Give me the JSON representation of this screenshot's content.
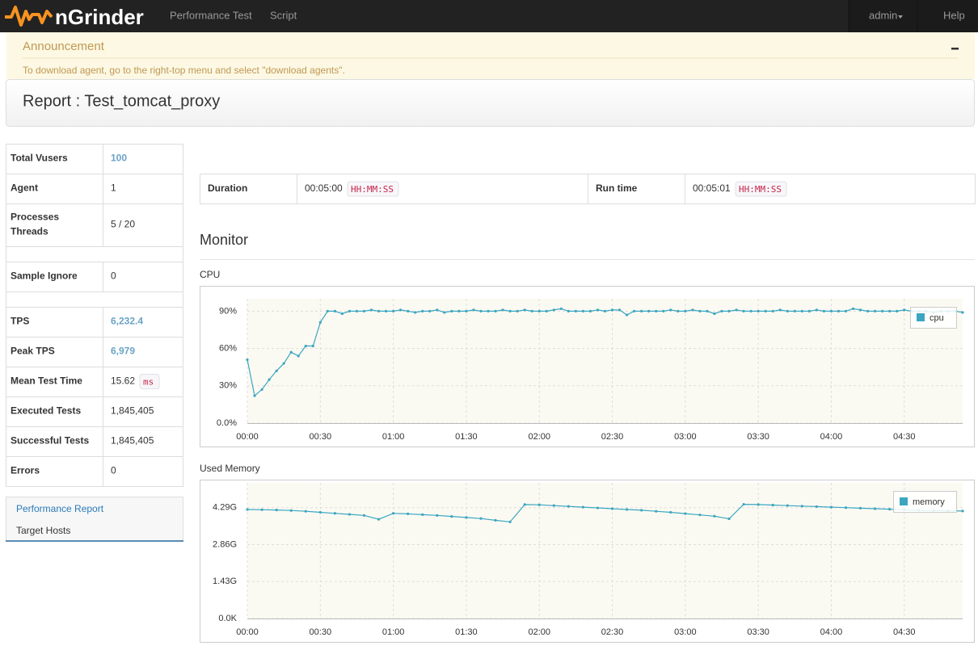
{
  "navbar": {
    "brand": "nGrinder",
    "menu": [
      "Performance Test",
      "Script"
    ],
    "user": "admin",
    "help": "Help"
  },
  "announcement": {
    "title": "Announcement",
    "text": "To download agent, go to the right-top menu and select \"download agents\"."
  },
  "report_title": "Report : Test_tomcat_proxy",
  "summary": {
    "rows": [
      {
        "label": "Total Vusers",
        "value": "100"
      },
      {
        "label": "Agent",
        "value": "1"
      },
      {
        "label": "Processes",
        "sublabel": "Threads",
        "value": "5 / 20"
      },
      {
        "label": "Sample Ignore",
        "value": "0"
      },
      {
        "label": "TPS",
        "value": "6,232.4"
      },
      {
        "label": "Peak TPS",
        "value": "6,979"
      },
      {
        "label": "Mean Test Time",
        "value": "15.62",
        "unit": "ms"
      },
      {
        "label": "Executed Tests",
        "value": "1,845,405"
      },
      {
        "label": "Successful Tests",
        "value": "1,845,405"
      },
      {
        "label": "Errors",
        "value": "0"
      }
    ]
  },
  "side_nav": [
    "Performance Report",
    "Target Hosts"
  ],
  "run_info": {
    "duration_label": "Duration",
    "duration": "00:05:00",
    "duration_format": "HH:MM:SS",
    "runtime_label": "Run time",
    "runtime": "00:05:01",
    "runtime_format": "HH:MM:SS"
  },
  "monitor_title": "Monitor",
  "chart_data": [
    {
      "type": "line",
      "title": "CPU",
      "x": [
        0,
        3,
        6,
        9,
        12,
        15,
        18,
        21,
        24,
        27,
        30,
        33,
        36,
        39,
        42,
        45,
        48,
        51,
        54,
        57,
        60,
        63,
        66,
        69,
        72,
        75,
        78,
        81,
        84,
        87,
        90,
        93,
        96,
        99,
        102,
        105,
        108,
        111,
        114,
        117,
        120,
        123,
        126,
        129,
        132,
        135,
        138,
        141,
        144,
        147,
        150,
        153,
        156,
        159,
        162,
        165,
        168,
        171,
        174,
        177,
        180,
        183,
        186,
        189,
        192,
        195,
        198,
        201,
        204,
        207,
        210,
        213,
        216,
        219,
        222,
        225,
        228,
        231,
        234,
        237,
        240,
        243,
        246,
        249,
        252,
        255,
        258,
        261,
        264,
        267,
        270,
        273,
        276,
        279,
        282,
        285,
        288,
        291,
        294
      ],
      "xlim": [
        0,
        294
      ],
      "xticks": [
        {
          "value": 0,
          "label": "00:00"
        },
        {
          "value": 30,
          "label": "00:30"
        },
        {
          "value": 60,
          "label": "01:00"
        },
        {
          "value": 90,
          "label": "01:30"
        },
        {
          "value": 120,
          "label": "02:00"
        },
        {
          "value": 150,
          "label": "02:30"
        },
        {
          "value": 180,
          "label": "03:00"
        },
        {
          "value": 210,
          "label": "03:30"
        },
        {
          "value": 240,
          "label": "04:00"
        },
        {
          "value": 270,
          "label": "04:30"
        }
      ],
      "ylim": [
        0,
        100
      ],
      "yticks": [
        {
          "value": 0,
          "label": "0.0%"
        },
        {
          "value": 30,
          "label": "30%"
        },
        {
          "value": 60,
          "label": "60%"
        },
        {
          "value": 90,
          "label": "90%"
        }
      ],
      "grid": true,
      "legend": "top-right",
      "series": [
        {
          "name": "cpu",
          "color": "#3ca6c1",
          "values": [
            51,
            22,
            27,
            35,
            42,
            48,
            57,
            54,
            62,
            62,
            81,
            90,
            90,
            88,
            90,
            90,
            90,
            91,
            90,
            90,
            90,
            91,
            90,
            89,
            90,
            90,
            91,
            89,
            90,
            90,
            90,
            91,
            90,
            90,
            90,
            91,
            90,
            90,
            91,
            90,
            90,
            90,
            91,
            92,
            90,
            90,
            90,
            90,
            91,
            90,
            91,
            91,
            87,
            90,
            90,
            90,
            90,
            90,
            91,
            90,
            90,
            91,
            90,
            90,
            88,
            90,
            90,
            91,
            90,
            90,
            90,
            90,
            90,
            91,
            90,
            90,
            90,
            90,
            91,
            90,
            90,
            90,
            90,
            92,
            91,
            90,
            90,
            90,
            90,
            90,
            91,
            90,
            90,
            90,
            89,
            90,
            90,
            90,
            89
          ]
        }
      ]
    },
    {
      "type": "line",
      "title": "Used Memory",
      "x": [
        0,
        6,
        12,
        18,
        24,
        30,
        36,
        42,
        48,
        54,
        60,
        66,
        72,
        78,
        84,
        90,
        96,
        102,
        108,
        114,
        120,
        126,
        132,
        138,
        144,
        150,
        156,
        162,
        168,
        174,
        180,
        186,
        192,
        198,
        204,
        210,
        216,
        222,
        228,
        234,
        240,
        246,
        252,
        258,
        264,
        270,
        276,
        282,
        288,
        294
      ],
      "xlim": [
        0,
        294
      ],
      "xticks": [
        {
          "value": 0,
          "label": "00:00"
        },
        {
          "value": 30,
          "label": "00:30"
        },
        {
          "value": 60,
          "label": "01:00"
        },
        {
          "value": 90,
          "label": "01:30"
        },
        {
          "value": 120,
          "label": "02:00"
        },
        {
          "value": 150,
          "label": "02:30"
        },
        {
          "value": 180,
          "label": "03:00"
        },
        {
          "value": 210,
          "label": "03:30"
        },
        {
          "value": 240,
          "label": "04:00"
        },
        {
          "value": 270,
          "label": "04:30"
        }
      ],
      "ylim": [
        0,
        5.25
      ],
      "yticks": [
        {
          "value": 0,
          "label": "0.0K"
        },
        {
          "value": 1.43,
          "label": "1.43G"
        },
        {
          "value": 2.86,
          "label": "2.86G"
        },
        {
          "value": 4.29,
          "label": "4.29G"
        }
      ],
      "grid": true,
      "legend": "top-right",
      "series": [
        {
          "name": "memory",
          "color": "#3ca6c1",
          "values": [
            4.22,
            4.21,
            4.2,
            4.18,
            4.15,
            4.11,
            4.07,
            4.03,
            3.99,
            3.84,
            4.07,
            4.05,
            4.02,
            3.99,
            3.95,
            3.91,
            3.87,
            3.8,
            3.74,
            4.41,
            4.4,
            4.37,
            4.34,
            4.31,
            4.28,
            4.25,
            4.22,
            4.19,
            4.15,
            4.11,
            4.06,
            4.01,
            3.96,
            3.86,
            4.42,
            4.41,
            4.39,
            4.37,
            4.35,
            4.33,
            4.31,
            4.29,
            4.27,
            4.25,
            4.23,
            4.21,
            4.19,
            4.18,
            4.17,
            4.16
          ]
        }
      ]
    }
  ]
}
